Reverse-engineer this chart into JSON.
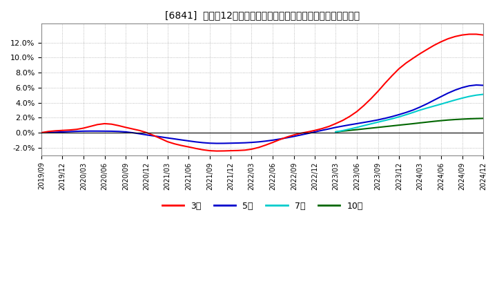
{
  "title": "[6841]  売上高12か月移動合計の対前年同期増減率の平均値の推移",
  "ylim": [
    -0.03,
    0.145
  ],
  "yticks": [
    -0.02,
    0.0,
    0.02,
    0.04,
    0.06,
    0.08,
    0.1,
    0.12
  ],
  "ytick_labels": [
    "-2.0%",
    "0.0%",
    "2.0%",
    "4.0%",
    "6.0%",
    "8.0%",
    "10.0%",
    "12.0%"
  ],
  "background_color": "#ffffff",
  "plot_bg_color": "#ffffff",
  "grid_color": "#aaaaaa",
  "line_colors": {
    "3year": "#ff0000",
    "5year": "#0000cc",
    "7year": "#00cccc",
    "10year": "#006600"
  },
  "legend_labels": [
    "3年",
    "5年",
    "7年",
    "10年"
  ],
  "x_ticks": [
    "2019/09",
    "2019/12",
    "2020/03",
    "2020/06",
    "2020/09",
    "2020/12",
    "2021/03",
    "2021/06",
    "2021/09",
    "2021/12",
    "2022/03",
    "2022/06",
    "2022/09",
    "2022/12",
    "2023/03",
    "2023/06",
    "2023/09",
    "2023/12",
    "2024/03",
    "2024/06",
    "2024/09",
    "2024/12"
  ],
  "ctrl_3year_months": [
    0,
    3,
    6,
    9,
    12,
    15,
    18,
    21,
    24,
    27,
    30,
    33,
    36,
    39,
    42,
    45,
    48,
    51,
    54,
    57,
    60,
    63
  ],
  "ctrl_3year_vals": [
    0.0,
    0.003,
    0.006,
    0.012,
    0.007,
    0.0,
    -0.012,
    -0.019,
    -0.024,
    -0.024,
    -0.022,
    -0.013,
    -0.003,
    0.003,
    0.012,
    0.028,
    0.055,
    0.085,
    0.105,
    0.121,
    0.13,
    0.13
  ],
  "ctrl_5year_months": [
    0,
    3,
    6,
    9,
    12,
    15,
    18,
    21,
    24,
    27,
    30,
    33,
    36,
    39,
    42,
    45,
    48,
    51,
    54,
    57,
    60,
    63
  ],
  "ctrl_5year_vals": [
    0.0,
    0.001,
    0.002,
    0.002,
    0.001,
    -0.003,
    -0.007,
    -0.011,
    -0.014,
    -0.014,
    -0.013,
    -0.01,
    -0.005,
    0.001,
    0.007,
    0.012,
    0.017,
    0.024,
    0.034,
    0.048,
    0.06,
    0.063
  ],
  "ctrl_7year_months": [
    42,
    45,
    48,
    51,
    54,
    57,
    60,
    63
  ],
  "ctrl_7year_vals": [
    0.001,
    0.007,
    0.014,
    0.021,
    0.03,
    0.038,
    0.046,
    0.051
  ],
  "ctrl_10year_months": [
    42,
    45,
    48,
    51,
    54,
    57,
    60,
    63
  ],
  "ctrl_10year_vals": [
    0.001,
    0.004,
    0.007,
    0.01,
    0.013,
    0.016,
    0.018,
    0.019
  ]
}
